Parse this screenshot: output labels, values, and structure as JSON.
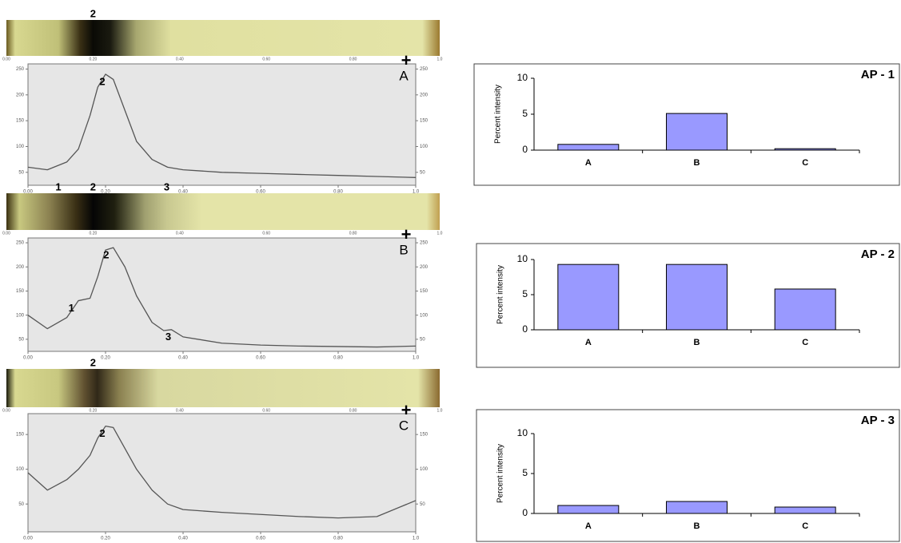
{
  "chart_data": [
    {
      "type": "line",
      "label": "A",
      "marker": "+",
      "x": [
        0,
        0.05,
        0.1,
        0.13,
        0.16,
        0.18,
        0.2,
        0.22,
        0.25,
        0.28,
        0.32,
        0.36,
        0.4,
        0.5,
        0.6,
        0.7,
        0.8,
        0.9,
        1.0
      ],
      "series": [
        {
          "color": "#555555",
          "values": [
            60,
            55,
            70,
            95,
            160,
            215,
            240,
            230,
            170,
            110,
            75,
            60,
            55,
            50,
            48,
            46,
            44,
            42,
            40
          ]
        }
      ],
      "xlim": [
        0,
        1
      ],
      "ylim": [
        25,
        260
      ],
      "xticks": [
        {
          "value": 0,
          "label": "0.00"
        },
        {
          "value": 0.2,
          "label": "0.20"
        },
        {
          "value": 0.4,
          "label": "0.40"
        },
        {
          "value": 0.6,
          "label": "0.60"
        },
        {
          "value": 0.8,
          "label": "0.80"
        },
        {
          "value": 1,
          "label": "1.0"
        }
      ],
      "yticks": [
        50,
        100,
        150,
        200,
        250
      ],
      "annotations": [
        {
          "text": "2",
          "x": 0.2,
          "y": 240
        }
      ],
      "band_labels": [
        {
          "text": "2",
          "x": 0.2
        }
      ]
    },
    {
      "type": "line",
      "label": "B",
      "marker": "+",
      "x": [
        0,
        0.05,
        0.1,
        0.13,
        0.16,
        0.18,
        0.2,
        0.22,
        0.25,
        0.28,
        0.32,
        0.35,
        0.37,
        0.4,
        0.5,
        0.6,
        0.7,
        0.8,
        0.9,
        1.0
      ],
      "series": [
        {
          "color": "#555555",
          "values": [
            100,
            72,
            95,
            130,
            135,
            180,
            235,
            240,
            200,
            140,
            85,
            68,
            70,
            55,
            42,
            38,
            36,
            35,
            34,
            36
          ]
        }
      ],
      "xlim": [
        0,
        1
      ],
      "ylim": [
        25,
        260
      ],
      "xticks": [
        {
          "value": 0,
          "label": "0.00"
        },
        {
          "value": 0.2,
          "label": "0.20"
        },
        {
          "value": 0.4,
          "label": "0.40"
        },
        {
          "value": 0.6,
          "label": "0.60"
        },
        {
          "value": 0.8,
          "label": "0.80"
        },
        {
          "value": 1,
          "label": "1.0"
        }
      ],
      "yticks": [
        50,
        100,
        150,
        200,
        250
      ],
      "annotations": [
        {
          "text": "1",
          "x": 0.12,
          "y": 130
        },
        {
          "text": "2",
          "x": 0.21,
          "y": 240
        },
        {
          "text": "3",
          "x": 0.37,
          "y": 70
        }
      ],
      "band_labels": [
        {
          "text": "1",
          "x": 0.12
        },
        {
          "text": "2",
          "x": 0.2
        },
        {
          "text": "3",
          "x": 0.37
        }
      ]
    },
    {
      "type": "line",
      "label": "C",
      "marker": "+",
      "x": [
        0,
        0.05,
        0.1,
        0.13,
        0.16,
        0.18,
        0.2,
        0.22,
        0.25,
        0.28,
        0.32,
        0.36,
        0.4,
        0.5,
        0.6,
        0.7,
        0.8,
        0.9,
        1.0
      ],
      "series": [
        {
          "color": "#555555",
          "values": [
            95,
            70,
            85,
            100,
            120,
            145,
            162,
            160,
            130,
            100,
            70,
            50,
            42,
            38,
            35,
            32,
            30,
            32,
            55
          ]
        }
      ],
      "xlim": [
        0,
        1
      ],
      "ylim": [
        10,
        180
      ],
      "xticks": [
        {
          "value": 0,
          "label": "0.00"
        },
        {
          "value": 0.2,
          "label": "0.20"
        },
        {
          "value": 0.4,
          "label": "0.40"
        },
        {
          "value": 0.6,
          "label": "0.60"
        },
        {
          "value": 0.8,
          "label": "0.80"
        },
        {
          "value": 1,
          "label": "1.0"
        }
      ],
      "yticks": [
        50,
        100,
        150
      ],
      "annotations": [
        {
          "text": "2",
          "x": 0.2,
          "y": 162
        }
      ],
      "band_labels": [
        {
          "text": "2",
          "x": 0.2
        }
      ]
    },
    {
      "type": "bar",
      "title": "AP - 1",
      "y_label": "Percent intensity",
      "categories": [
        "A",
        "B",
        "C"
      ],
      "values": [
        0.8,
        5.1,
        0.2
      ],
      "color": "#9999ff",
      "ylim": [
        0,
        10
      ],
      "yticks": [
        0,
        5,
        10
      ]
    },
    {
      "type": "bar",
      "title": "AP - 2",
      "y_label": "Percent intensity",
      "categories": [
        "A",
        "B",
        "C"
      ],
      "values": [
        9.3,
        9.3,
        5.8
      ],
      "color": "#9999ff",
      "ylim": [
        0,
        10
      ],
      "yticks": [
        0,
        5,
        10
      ]
    },
    {
      "type": "bar",
      "title": "AP - 3",
      "y_label": "Percent intensity",
      "categories": [
        "A",
        "B",
        "C"
      ],
      "values": [
        1.0,
        1.5,
        0.8
      ],
      "color": "#9999ff",
      "ylim": [
        0,
        10
      ],
      "yticks": [
        0,
        5,
        10
      ]
    }
  ]
}
